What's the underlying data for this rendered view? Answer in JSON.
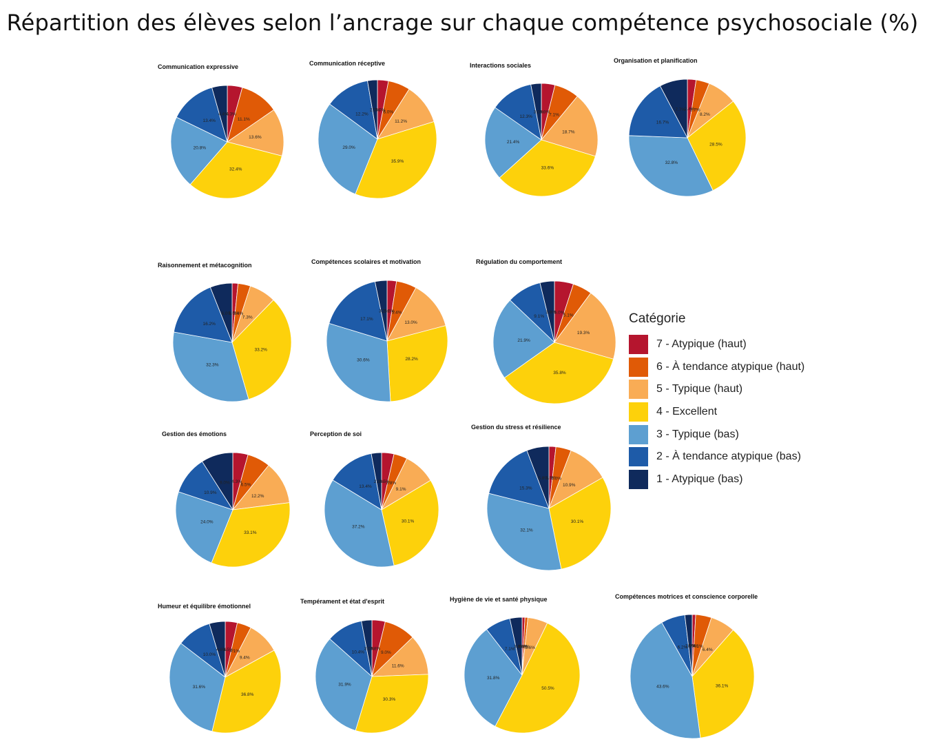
{
  "title": "Répartition des élèves selon l’ancrage sur chaque compétence psychosociale (%)",
  "legend": {
    "title": "Catégorie",
    "items": [
      {
        "label": "7 - Atypique (haut)",
        "color": "#b5152e"
      },
      {
        "label": "6 - À tendance atypique (haut)",
        "color": "#e05a06"
      },
      {
        "label": "5 - Typique (haut)",
        "color": "#f9ac55"
      },
      {
        "label": "4 - Excellent",
        "color": "#fdd10b"
      },
      {
        "label": "3 - Typique (bas)",
        "color": "#5d9fd1"
      },
      {
        "label": "2 - À tendance atypique (bas)",
        "color": "#1e5ba8"
      },
      {
        "label": "1 - Atypique (bas)",
        "color": "#0f2a5c"
      }
    ]
  },
  "chart_data": [
    {
      "type": "pie",
      "title": "Communication expressive",
      "categories": [
        "7",
        "6",
        "5",
        "4",
        "3",
        "2",
        "1"
      ],
      "values": [
        4.3,
        11.1,
        13.6,
        32.4,
        20.8,
        13.4,
        4.4
      ],
      "labels": [
        "4.3%",
        "11.1%",
        "13.6%",
        "32.4%",
        "20.8%",
        "13.4%",
        "4.4%"
      ]
    },
    {
      "type": "pie",
      "title": "Communication réceptive",
      "categories": [
        "7",
        "6",
        "5",
        "4",
        "3",
        "2",
        "1"
      ],
      "values": [
        3.0,
        6.0,
        11.2,
        35.9,
        29.0,
        12.2,
        2.7
      ],
      "labels": [
        "3.0%",
        "6.0%",
        "11.2%",
        "35.9%",
        "29.0%",
        "12.2%",
        "2.7%"
      ]
    },
    {
      "type": "pie",
      "title": "Interactions sociales",
      "categories": [
        "7",
        "6",
        "5",
        "4",
        "3",
        "2",
        "1"
      ],
      "values": [
        3.9,
        7.1,
        18.7,
        33.6,
        21.4,
        12.3,
        3.0
      ],
      "labels": [
        "3.9%",
        "7.1%",
        "18.7%",
        "33.6%",
        "21.4%",
        "12.3%",
        "3.0%"
      ]
    },
    {
      "type": "pie",
      "title": "Organisation et planification",
      "categories": [
        "7",
        "6",
        "5",
        "4",
        "3",
        "2",
        "1"
      ],
      "values": [
        2.4,
        3.7,
        8.2,
        28.5,
        32.8,
        16.7,
        7.7
      ],
      "labels": [
        "2.4%",
        "3.7%",
        "8.2%",
        "28.5%",
        "32.8%",
        "16.7%",
        "7.7%"
      ]
    },
    {
      "type": "pie",
      "title": "Raisonnement et métacognition",
      "categories": [
        "7",
        "6",
        "5",
        "4",
        "3",
        "2",
        "1"
      ],
      "values": [
        1.6,
        3.4,
        7.3,
        33.2,
        32.3,
        16.2,
        6.0
      ],
      "labels": [
        "1.6%",
        "3.4%",
        "7.3%",
        "33.2%",
        "32.3%",
        "16.2%",
        "6.0%"
      ]
    },
    {
      "type": "pie",
      "title": "Compétences scolaires et motivation",
      "categories": [
        "7",
        "6",
        "5",
        "4",
        "3",
        "2",
        "1"
      ],
      "values": [
        2.5,
        5.4,
        13.0,
        28.2,
        30.6,
        17.1,
        3.2
      ],
      "labels": [
        "2.5%",
        "5.4%",
        "13.0%",
        "28.2%",
        "30.6%",
        "17.1%",
        "3.2%"
      ]
    },
    {
      "type": "pie",
      "title": "Régulation du comportement",
      "categories": [
        "7",
        "6",
        "5",
        "4",
        "3",
        "2",
        "1"
      ],
      "values": [
        5.0,
        5.1,
        19.3,
        35.8,
        21.9,
        9.1,
        3.8
      ],
      "labels": [
        "5.0%",
        "5.1%",
        "19.3%",
        "35.8%",
        "21.9%",
        "9.1%",
        "3.8%"
      ]
    },
    {
      "type": "pie",
      "title": "Gestion des émotions",
      "categories": [
        "7",
        "6",
        "5",
        "4",
        "3",
        "2",
        "1"
      ],
      "values": [
        4.3,
        6.5,
        12.2,
        33.1,
        24.0,
        10.9,
        9.0
      ],
      "labels": [
        "4.3%",
        "6.5%",
        "12.2%",
        "33.1%",
        "24.0%",
        "10.9%",
        "9.0%"
      ]
    },
    {
      "type": "pie",
      "title": "Perception de soi",
      "categories": [
        "7",
        "6",
        "5",
        "4",
        "3",
        "2",
        "1"
      ],
      "values": [
        3.5,
        3.8,
        9.1,
        30.1,
        37.2,
        13.4,
        2.9
      ],
      "labels": [
        "3.5%",
        "3.8%",
        "9.1%",
        "30.1%",
        "37.2%",
        "13.4%",
        "2.9%"
      ]
    },
    {
      "type": "pie",
      "title": "Gestion du stress et résilience",
      "categories": [
        "7",
        "6",
        "5",
        "4",
        "3",
        "2",
        "1"
      ],
      "values": [
        1.8,
        4.0,
        10.9,
        30.1,
        32.1,
        15.3,
        5.8
      ],
      "labels": [
        "1.8%",
        "4.0%",
        "10.9%",
        "30.1%",
        "32.1%",
        "15.3%",
        "5.8%"
      ]
    },
    {
      "type": "pie",
      "title": "Humeur et équilibre émotionnel",
      "categories": [
        "7",
        "6",
        "5",
        "4",
        "3",
        "2",
        "1"
      ],
      "values": [
        3.5,
        4.1,
        9.4,
        36.8,
        31.6,
        10.0,
        4.6
      ],
      "labels": [
        "3.5%",
        "4.1%",
        "9.4%",
        "36.8%",
        "31.6%",
        "10.0%",
        "4.6%"
      ]
    },
    {
      "type": "pie",
      "title": "Tempérament et état d'esprit",
      "categories": [
        "7",
        "6",
        "5",
        "4",
        "3",
        "2",
        "1"
      ],
      "values": [
        3.8,
        9.0,
        11.6,
        30.3,
        31.9,
        10.4,
        3.0
      ],
      "labels": [
        "3.8%",
        "9.0%",
        "11.6%",
        "30.3%",
        "31.9%",
        "10.4%",
        "3.0%"
      ]
    },
    {
      "type": "pie",
      "title": "Hygiène de vie et santé physique",
      "categories": [
        "7",
        "6",
        "5",
        "4",
        "3",
        "2",
        "1"
      ],
      "values": [
        0.8,
        0.8,
        5.6,
        50.5,
        31.8,
        7.1,
        3.4
      ],
      "labels": [
        "0.8%",
        "0.8%",
        "5.6%",
        "50.5%",
        "31.8%",
        "7.1%",
        "3.4%"
      ]
    },
    {
      "type": "pie",
      "title": "Compétences motrices et conscience corporelle",
      "categories": [
        "7",
        "6",
        "5",
        "4",
        "3",
        "2",
        "1"
      ],
      "values": [
        0.9,
        4.1,
        6.4,
        36.1,
        43.6,
        6.2,
        1.9
      ],
      "labels": [
        "0.9%",
        "4.1%",
        "6.4%",
        "36.1%",
        "43.6%",
        "6.2%",
        "1.9%"
      ]
    }
  ]
}
